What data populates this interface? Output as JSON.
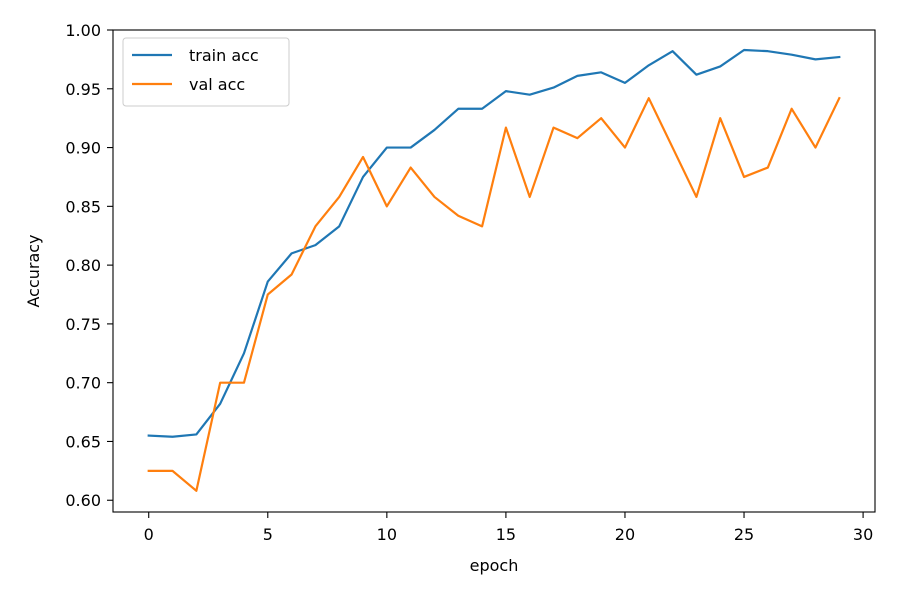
{
  "chart_data": {
    "type": "line",
    "title": "",
    "xlabel": "epoch",
    "ylabel": "Accuracy",
    "xlim": [
      -1.5,
      30.5
    ],
    "ylim": [
      0.59,
      1.0
    ],
    "xticks": [
      0,
      5,
      10,
      15,
      20,
      25,
      30
    ],
    "yticks": [
      0.6,
      0.65,
      0.7,
      0.75,
      0.8,
      0.85,
      0.9,
      0.95,
      1.0
    ],
    "xtick_labels": [
      "0",
      "5",
      "10",
      "15",
      "20",
      "25",
      "30"
    ],
    "ytick_labels": [
      "0.60",
      "0.65",
      "0.70",
      "0.75",
      "0.80",
      "0.85",
      "0.90",
      "0.95",
      "1.00"
    ],
    "grid": false,
    "legend": "top-left",
    "x": [
      0,
      1,
      2,
      3,
      4,
      5,
      6,
      7,
      8,
      9,
      10,
      11,
      12,
      13,
      14,
      15,
      16,
      17,
      18,
      19,
      20,
      21,
      22,
      23,
      24,
      25,
      26,
      27,
      28,
      29
    ],
    "series": [
      {
        "name": "train acc",
        "color": "#1f77b4",
        "values": [
          0.655,
          0.654,
          0.656,
          0.682,
          0.725,
          0.786,
          0.81,
          0.817,
          0.833,
          0.875,
          0.9,
          0.9,
          0.915,
          0.933,
          0.933,
          0.948,
          0.945,
          0.951,
          0.961,
          0.964,
          0.955,
          0.97,
          0.982,
          0.962,
          0.969,
          0.983,
          0.982,
          0.979,
          0.975,
          0.977
        ]
      },
      {
        "name": "val acc",
        "color": "#ff7f0e",
        "values": [
          0.625,
          0.625,
          0.608,
          0.7,
          0.7,
          0.775,
          0.792,
          0.833,
          0.858,
          0.892,
          0.85,
          0.883,
          0.858,
          0.842,
          0.833,
          0.917,
          0.858,
          0.917,
          0.908,
          0.925,
          0.9,
          0.942,
          0.9,
          0.858,
          0.925,
          0.875,
          0.883,
          0.933,
          0.9,
          0.942
        ]
      }
    ]
  }
}
